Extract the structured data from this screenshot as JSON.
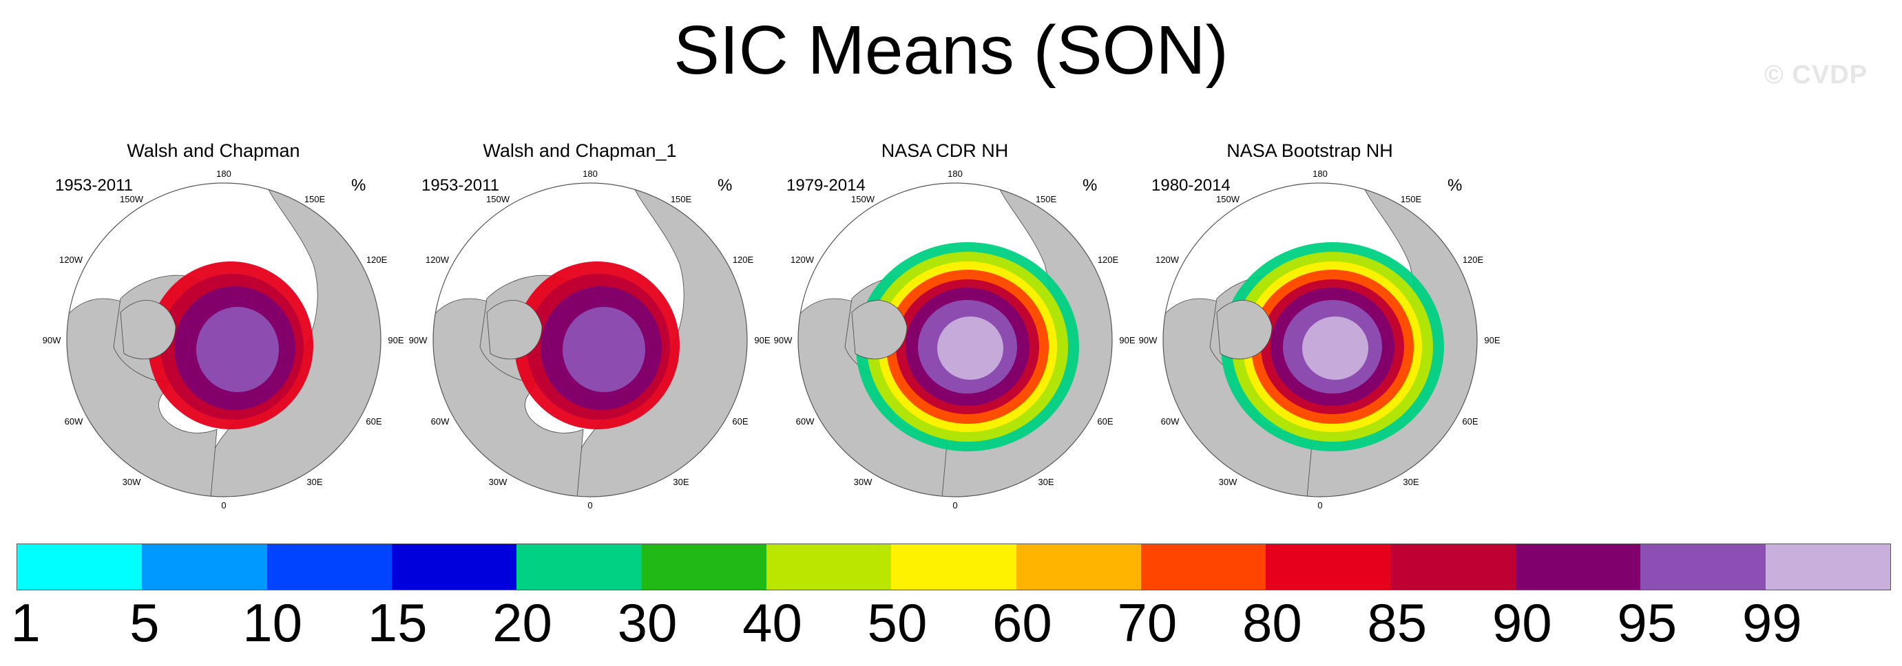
{
  "title": "SIC Means (SON)",
  "watermark": "© CVDP",
  "units": "%",
  "lon_labels": {
    "top": "180",
    "tl": "150W",
    "tr": "150E",
    "ul": "120W",
    "ur": "120E",
    "left": "90W",
    "right": "90E",
    "ll": "60W",
    "lr": "60E",
    "bl": "30W",
    "br": "30E",
    "bottom": "0"
  },
  "panels": [
    {
      "title": "Walsh and Chapman",
      "period": "1953-2011"
    },
    {
      "title": "Walsh and Chapman_1",
      "period": "1953-2011"
    },
    {
      "title": "NASA CDR NH",
      "period": "1979-2014"
    },
    {
      "title": "NASA Bootstrap NH",
      "period": "1980-2014"
    }
  ],
  "colorbar": {
    "colors": [
      "#00ffff",
      "#0099ff",
      "#0044ff",
      "#0000dd",
      "#00d182",
      "#20b916",
      "#bbe600",
      "#fff200",
      "#ffb400",
      "#ff4500",
      "#e6001b",
      "#be0033",
      "#80006e",
      "#8c50b4",
      "#c8afdc"
    ],
    "labels": [
      "1",
      "5",
      "10",
      "15",
      "20",
      "30",
      "40",
      "50",
      "60",
      "70",
      "80",
      "85",
      "90",
      "95",
      "99"
    ]
  },
  "colors": {
    "land": "#c0c0c0",
    "ocean": "#ffffff"
  }
}
